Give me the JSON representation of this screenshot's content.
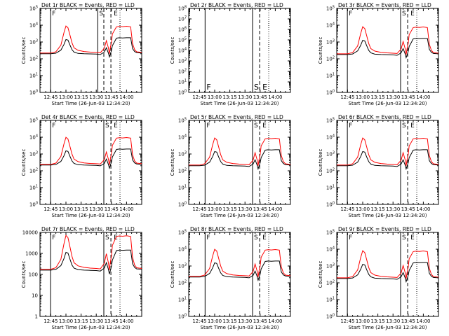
{
  "figure": {
    "type": "line",
    "shared": {
      "xlabel": "Start Time (26-Jun-03 12:34:20)",
      "ylabel": "Counts/sec",
      "x_ticks": [
        "12:45",
        "13:00",
        "13:15",
        "13:30",
        "13:45",
        "14:00"
      ],
      "x_tick_minutes": [
        645,
        660,
        675,
        690,
        705,
        720
      ],
      "xlim_minutes": [
        634.3,
        735
      ],
      "yscale": "log",
      "colors": {
        "events": "#000000",
        "lld": "#ff0000"
      },
      "marker_letters": {
        "F": "F",
        "S": "S",
        "E": "E"
      }
    },
    "time_points": [
      634.3,
      640,
      645,
      650,
      655,
      658,
      660,
      662,
      664,
      666,
      668,
      672,
      678,
      684,
      690,
      694,
      698,
      700,
      702,
      703,
      704,
      705,
      706,
      710,
      713,
      716,
      720,
      724,
      726,
      728,
      730,
      735
    ],
    "base_events": [
      200,
      200,
      200,
      215,
      330,
      700,
      1400,
      1300,
      650,
      350,
      250,
      210,
      200,
      195,
      190,
      180,
      250,
      450,
      220,
      130,
      200,
      300,
      600,
      1700,
      1800,
      1750,
      1800,
      1800,
      400,
      270,
      230,
      220
    ],
    "base_lld": [
      220,
      220,
      220,
      260,
      650,
      3500,
      9000,
      7000,
      2500,
      900,
      450,
      320,
      270,
      250,
      240,
      230,
      420,
      1200,
      450,
      200,
      500,
      900,
      3000,
      8000,
      8500,
      8200,
      8700,
      8000,
      800,
      350,
      260,
      240
    ]
  },
  "chart_data": [
    {
      "id": "det1r",
      "title": "Det 1r BLACK = Events, RED = LLD",
      "ylabel": "Counts/sec",
      "xlabel": "Start Time (26-Jun-03 12:34:20)",
      "ylim": [
        1,
        100000
      ],
      "ytick_style": "exp",
      "has_data": true,
      "scale": 1.0,
      "ticks": [
        "1",
        "10",
        "100",
        "1000",
        "10000",
        "100000"
      ],
      "markers": {
        "F": 644.8,
        "S": 691.5,
        "E": 704.5,
        "dashed": [
          697.5,
          704.5
        ],
        "dotted": [
          713.5
        ]
      }
    },
    {
      "id": "det2r",
      "title": "Det 2r BLACK = Events, RED = LLD",
      "ylabel": "Counts/sec",
      "xlabel": "Start Time (26-Jun-03 12:34:20)",
      "ylim": [
        1,
        100000000
      ],
      "ytick_style": "exp",
      "has_data": false,
      "scale": 1.0,
      "ticks": [
        "1",
        "10",
        "100",
        "1000",
        "10000",
        "100000",
        "1000000",
        "10000000",
        "100000000"
      ],
      "markers": {
        "F": 650.5,
        "S": 697.5,
        "E": 704.5,
        "dashed": [
          697.5,
          704.5
        ],
        "dotted": [
          713.5
        ]
      }
    },
    {
      "id": "det3r",
      "title": "Det 3r BLACK = Events, RED = LLD",
      "ylabel": "Counts/sec",
      "xlabel": "Start Time (26-Jun-03 12:34:20)",
      "ylim": [
        1,
        100000
      ],
      "ytick_style": "exp",
      "has_data": true,
      "scale": 0.9,
      "ticks": [
        "1",
        "10",
        "100",
        "1000",
        "10000",
        "100000"
      ],
      "markers": {
        "F": 644.8,
        "S": 697.5,
        "E": 704.5,
        "dashed": [
          697.5,
          704.5
        ],
        "dotted": [
          713.5
        ]
      }
    },
    {
      "id": "det4r",
      "title": "Det 4r BLACK = Events, RED = LLD",
      "ylabel": "Counts/sec",
      "xlabel": "Start Time (26-Jun-03 12:34:20)",
      "ylim": [
        1,
        100000
      ],
      "ytick_style": "exp",
      "has_data": true,
      "scale": 1.1,
      "ticks": [
        "1",
        "10",
        "100",
        "1000",
        "10000",
        "100000"
      ],
      "markers": {
        "F": 644.8,
        "S": 697.5,
        "E": 704.5,
        "dashed": [
          697.5,
          704.5
        ],
        "dotted": [
          713.5
        ]
      }
    },
    {
      "id": "det5r",
      "title": "Det 5r BLACK = Events, RED = LLD",
      "ylabel": "Counts/sec",
      "xlabel": "Start Time (26-Jun-03 12:34:20)",
      "ylim": [
        1,
        100000
      ],
      "ytick_style": "exp",
      "has_data": true,
      "scale": 1.0,
      "ticks": [
        "1",
        "10",
        "100",
        "1000",
        "10000",
        "100000"
      ],
      "markers": {
        "F": 650.5,
        "S": 697.5,
        "E": 704.5,
        "dashed": [
          697.5,
          704.5
        ],
        "dotted": [
          713.5
        ]
      }
    },
    {
      "id": "det6r",
      "title": "Det 6r BLACK = Events, RED = LLD",
      "ylabel": "Counts/sec",
      "xlabel": "Start Time (26-Jun-03 12:34:20)",
      "ylim": [
        1,
        100000
      ],
      "ytick_style": "exp",
      "has_data": true,
      "scale": 1.0,
      "ticks": [
        "1",
        "10",
        "100",
        "1000",
        "10000",
        "100000"
      ],
      "markers": {
        "F": 644.8,
        "S": 697.5,
        "E": 704.5,
        "dashed": [
          697.5,
          704.5
        ],
        "dotted": [
          713.5
        ]
      }
    },
    {
      "id": "det7r",
      "title": "Det 7r BLACK = Events, RED = LLD",
      "ylabel": "Counts/sec",
      "xlabel": "Start Time (26-Jun-03 12:34:20)",
      "ylim": [
        1,
        10000
      ],
      "ytick_style": "plain",
      "has_data": true,
      "scale": 0.8,
      "ticks": [
        "1",
        "10",
        "100",
        "1000",
        "10000"
      ],
      "markers": {
        "F": 644.8,
        "S": 697.5,
        "E": 704.5,
        "dashed": [
          697.5,
          704.5
        ],
        "dotted": [
          713.5
        ]
      }
    },
    {
      "id": "det8r",
      "title": "Det 8r BLACK = Events, RED = LLD",
      "ylabel": "Counts/sec",
      "xlabel": "Start Time (26-Jun-03 12:34:20)",
      "ylim": [
        1,
        100000
      ],
      "ytick_style": "exp",
      "has_data": true,
      "scale": 1.1,
      "ticks": [
        "1",
        "10",
        "100",
        "1000",
        "10000",
        "100000"
      ],
      "markers": {
        "F": 650.5,
        "S": 697.5,
        "E": 704.5,
        "dashed": [
          697.5,
          704.5
        ],
        "dotted": [
          713.5
        ]
      }
    },
    {
      "id": "det9r",
      "title": "Det 9r BLACK = Events, RED = LLD",
      "ylabel": "Counts/sec",
      "xlabel": "Start Time (26-Jun-03 12:34:20)",
      "ylim": [
        1,
        100000
      ],
      "ytick_style": "exp",
      "has_data": true,
      "scale": 0.9,
      "ticks": [
        "1",
        "10",
        "100",
        "1000",
        "10000",
        "100000"
      ],
      "markers": {
        "F": 644.8,
        "S": 697.5,
        "E": 704.5,
        "dashed": [
          697.5,
          704.5
        ],
        "dotted": [
          713.5
        ]
      }
    }
  ]
}
